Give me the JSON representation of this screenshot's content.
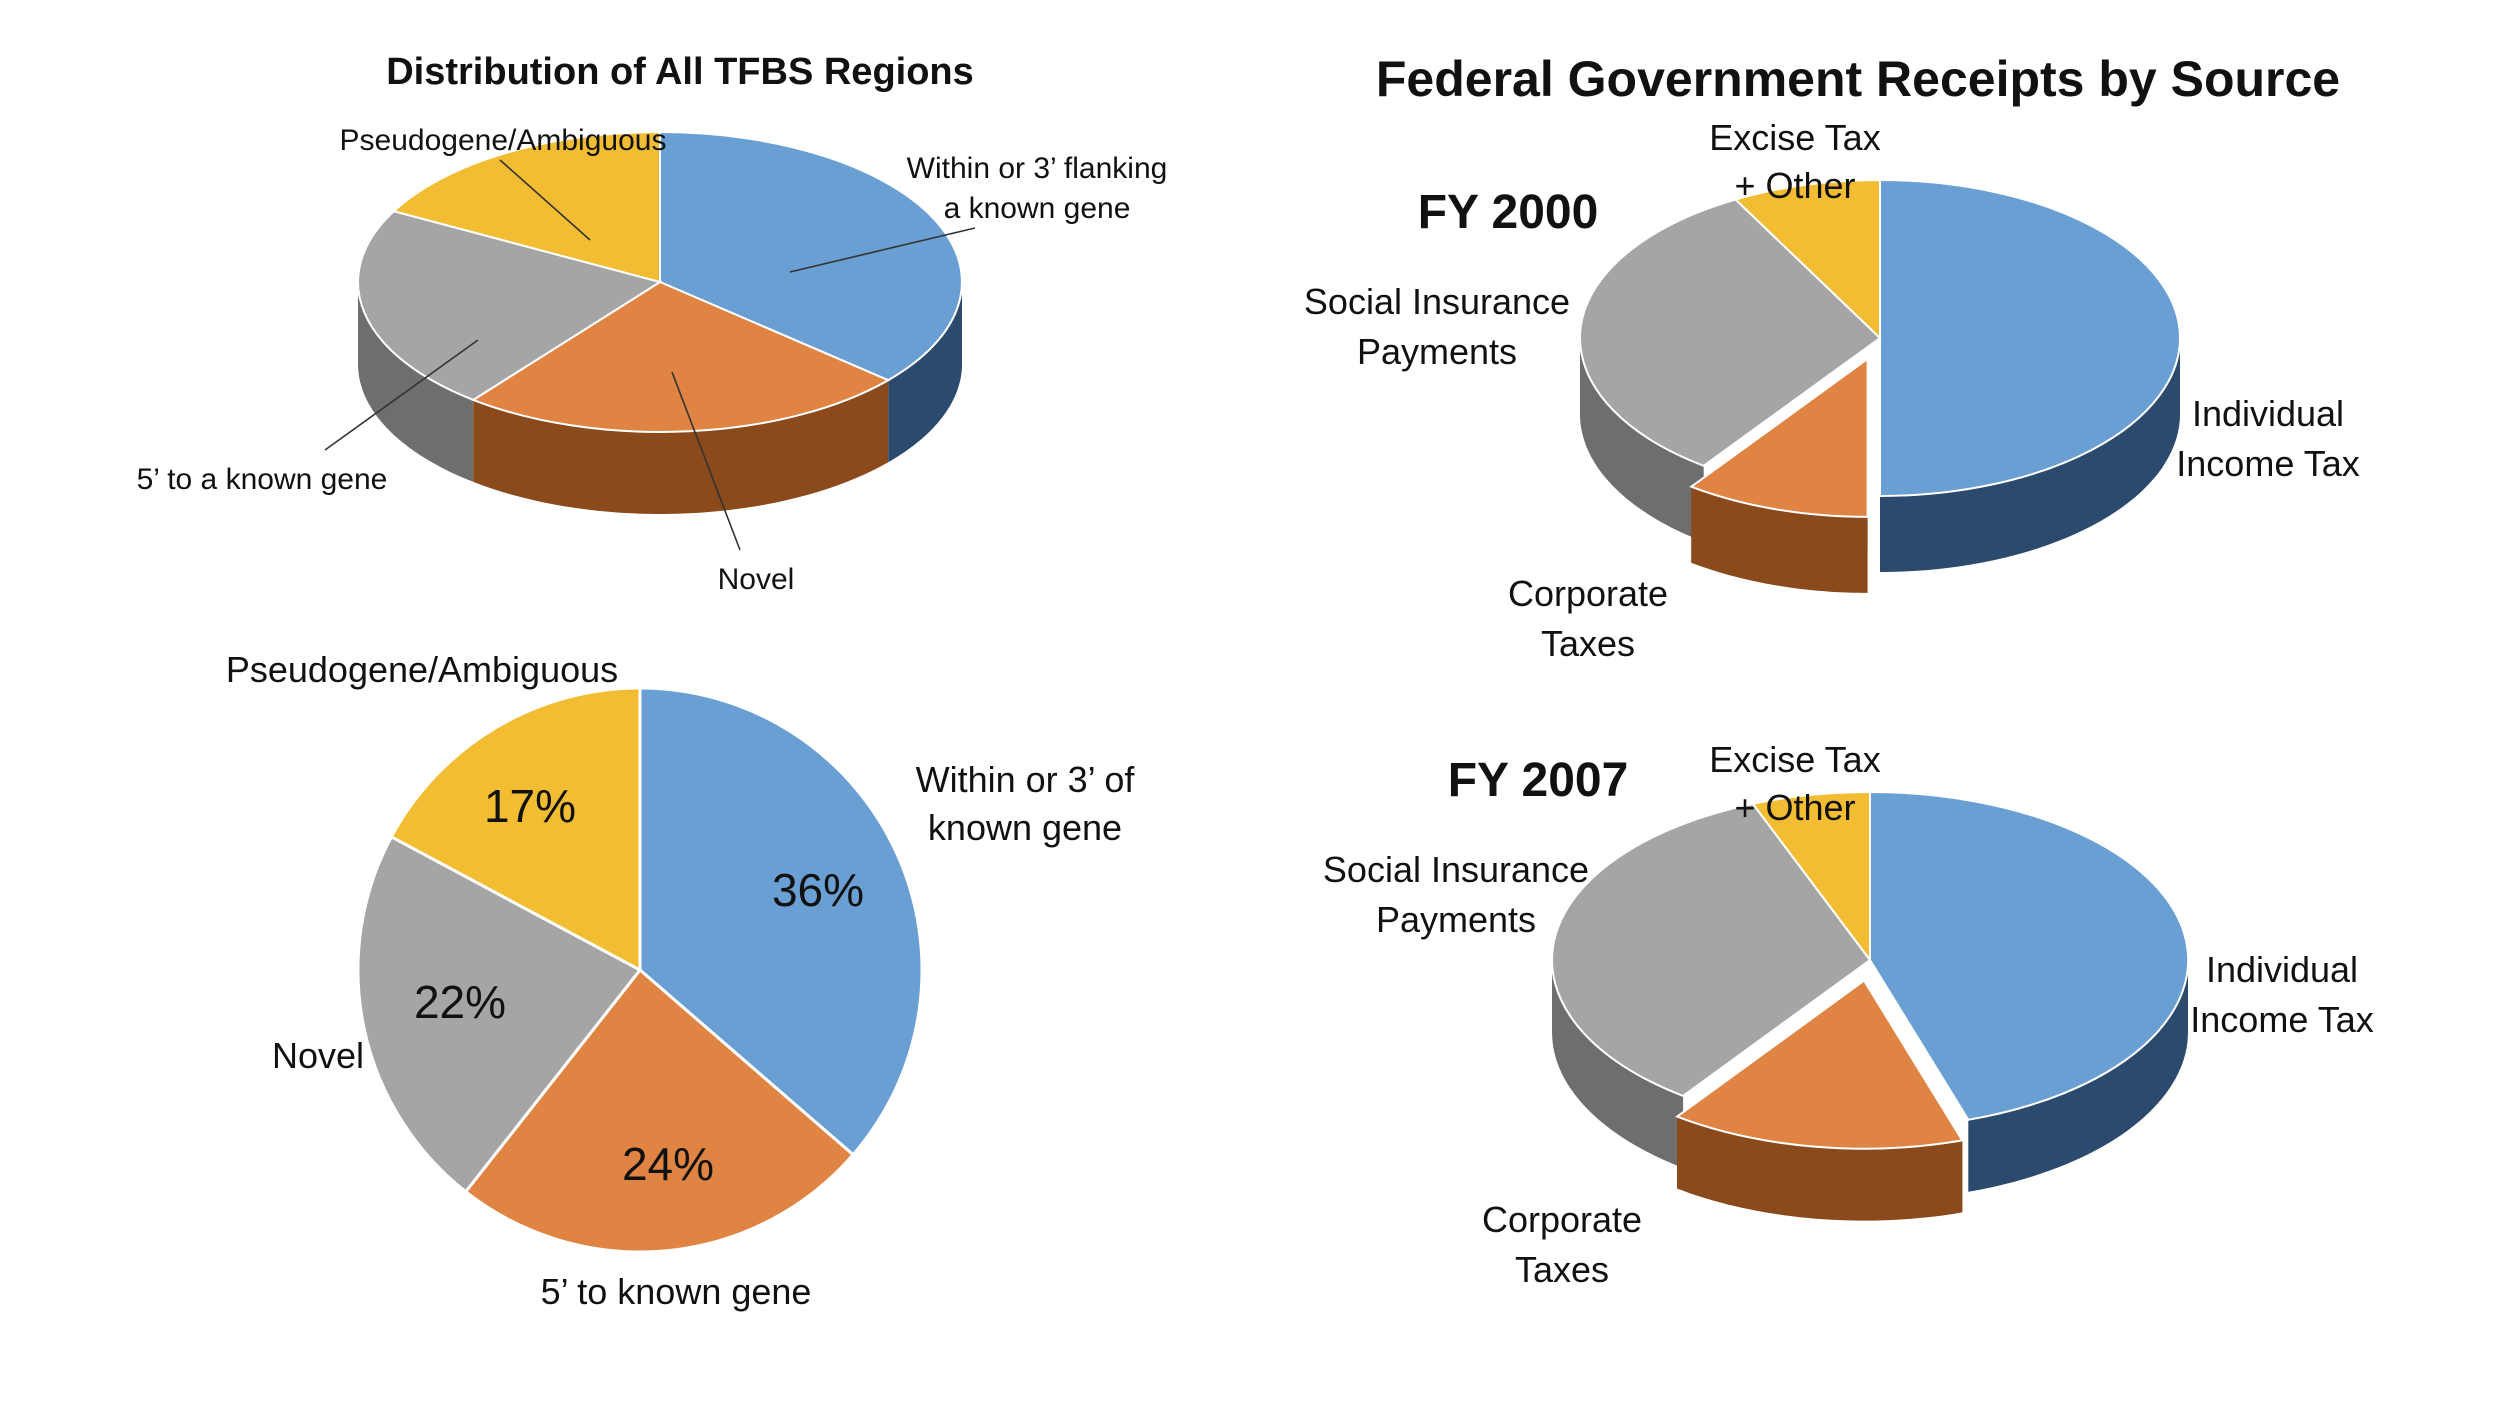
{
  "colors": {
    "blue": "#6a9fd4",
    "blue_side": "#2c4a6e",
    "orange": "#df8443",
    "orange_side": "#8a4a1c",
    "gray": "#a5a5a5",
    "gray_side": "#6e6e6e",
    "yellow": "#f2bd33",
    "yellow_side": "#a87f18"
  },
  "chart_data": [
    {
      "type": "pie",
      "style": "3d",
      "title": "Distribution of All TFBS Regions",
      "slices": [
        {
          "label": "Within or 3’ flanking a known gene",
          "value": 36,
          "color": "blue"
        },
        {
          "label": "Novel",
          "value": 24,
          "color": "orange"
        },
        {
          "label": "5’ to a known gene",
          "value": 22,
          "color": "gray"
        },
        {
          "label": "Pseudogene/Ambiguous",
          "value": 17,
          "color": "yellow"
        }
      ],
      "label_lines": [
        "Within or 3’ flanking",
        "a known gene"
      ]
    },
    {
      "type": "pie",
      "style": "2d",
      "title": "",
      "slices": [
        {
          "label": "Within or 3’ of known gene",
          "value": 36,
          "display": "36%",
          "color": "blue"
        },
        {
          "label": "5’ to known gene",
          "value": 24,
          "display": "24%",
          "color": "orange"
        },
        {
          "label": "Novel",
          "value": 22,
          "display": "22%",
          "color": "gray"
        },
        {
          "label": "Pseudogene/Ambiguous",
          "value": 17,
          "display": "17%",
          "color": "yellow"
        }
      ],
      "label_lines": [
        "Within or 3’ of",
        "known gene"
      ]
    },
    {
      "type": "pie",
      "style": "3d-exploded",
      "title": "Federal Government Receipts by Source",
      "subtitle": "FY 2000",
      "slices": [
        {
          "label": "Individual Income Tax",
          "value": 50,
          "color": "blue"
        },
        {
          "label": "Corporate Taxes",
          "value": 10,
          "color": "orange"
        },
        {
          "label": "Social Insurance Payments",
          "value": 32,
          "color": "gray"
        },
        {
          "label": "Excise Tax + Other",
          "value": 8,
          "color": "yellow"
        }
      ],
      "labels": {
        "individual": [
          "Individual",
          "Income Tax"
        ],
        "corporate": [
          "Corporate",
          "Taxes"
        ],
        "social": [
          "Social Insurance",
          "Payments"
        ],
        "excise": [
          "Excise Tax",
          "+ Other"
        ]
      }
    },
    {
      "type": "pie",
      "style": "3d-exploded",
      "title": "",
      "subtitle": "FY 2007",
      "slices": [
        {
          "label": "Individual Income Tax",
          "value": 45,
          "color": "blue"
        },
        {
          "label": "Corporate Taxes",
          "value": 15,
          "color": "orange"
        },
        {
          "label": "Social Insurance Payments",
          "value": 34,
          "color": "gray"
        },
        {
          "label": "Excise Tax + Other",
          "value": 6,
          "color": "yellow"
        }
      ],
      "labels": {
        "individual": [
          "Individual",
          "Income Tax"
        ],
        "corporate": [
          "Corporate",
          "Taxes"
        ],
        "social": [
          "Social Insurance",
          "Payments"
        ],
        "excise": [
          "Excise Tax",
          "+ Other"
        ]
      }
    }
  ]
}
